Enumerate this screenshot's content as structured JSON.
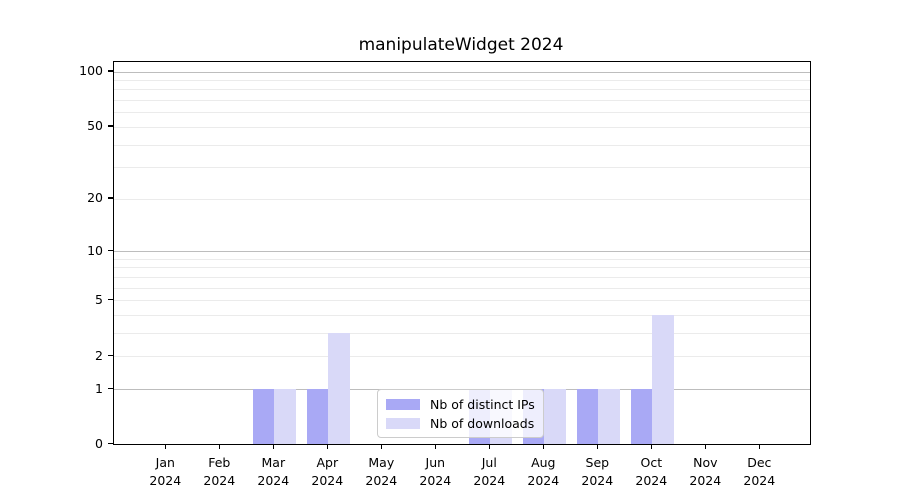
{
  "chart_data": {
    "type": "bar",
    "title": "manipulateWidget 2024",
    "categories": [
      "Jan 2024",
      "Feb 2024",
      "Mar 2024",
      "Apr 2024",
      "May 2024",
      "Jun 2024",
      "Jul 2024",
      "Aug 2024",
      "Sep 2024",
      "Oct 2024",
      "Nov 2024",
      "Dec 2024"
    ],
    "series": [
      {
        "name": "Nb of distinct IPs",
        "color": "#a9a9f5",
        "values": [
          0,
          0,
          1,
          1,
          0,
          0,
          1,
          1,
          1,
          1,
          0,
          0
        ]
      },
      {
        "name": "Nb of downloads",
        "color": "#d9d9f8",
        "values": [
          0,
          0,
          1,
          3,
          0,
          0,
          1,
          1,
          1,
          4,
          0,
          0
        ]
      }
    ],
    "xlabel": "",
    "ylabel": "",
    "y_axis": {
      "scale": "log1p",
      "ylim": [
        0,
        112
      ],
      "labeled_ticks": [
        0,
        1,
        2,
        5,
        10,
        20,
        50,
        100
      ],
      "major_gridlines": [
        1,
        10,
        100
      ],
      "minor_gridlines": [
        2,
        3,
        4,
        5,
        6,
        7,
        8,
        9,
        20,
        30,
        40,
        50,
        60,
        70,
        80,
        90
      ]
    },
    "grid": true,
    "legend": {
      "position": "lower center inside",
      "entries": [
        "Nb of distinct IPs",
        "Nb of downloads"
      ]
    }
  },
  "colors": {
    "grid_major": "#bdbdbd",
    "grid_minor": "#ebebeb",
    "spine": "#000000",
    "background": "#ffffff",
    "legend_border": "#cccccc"
  }
}
